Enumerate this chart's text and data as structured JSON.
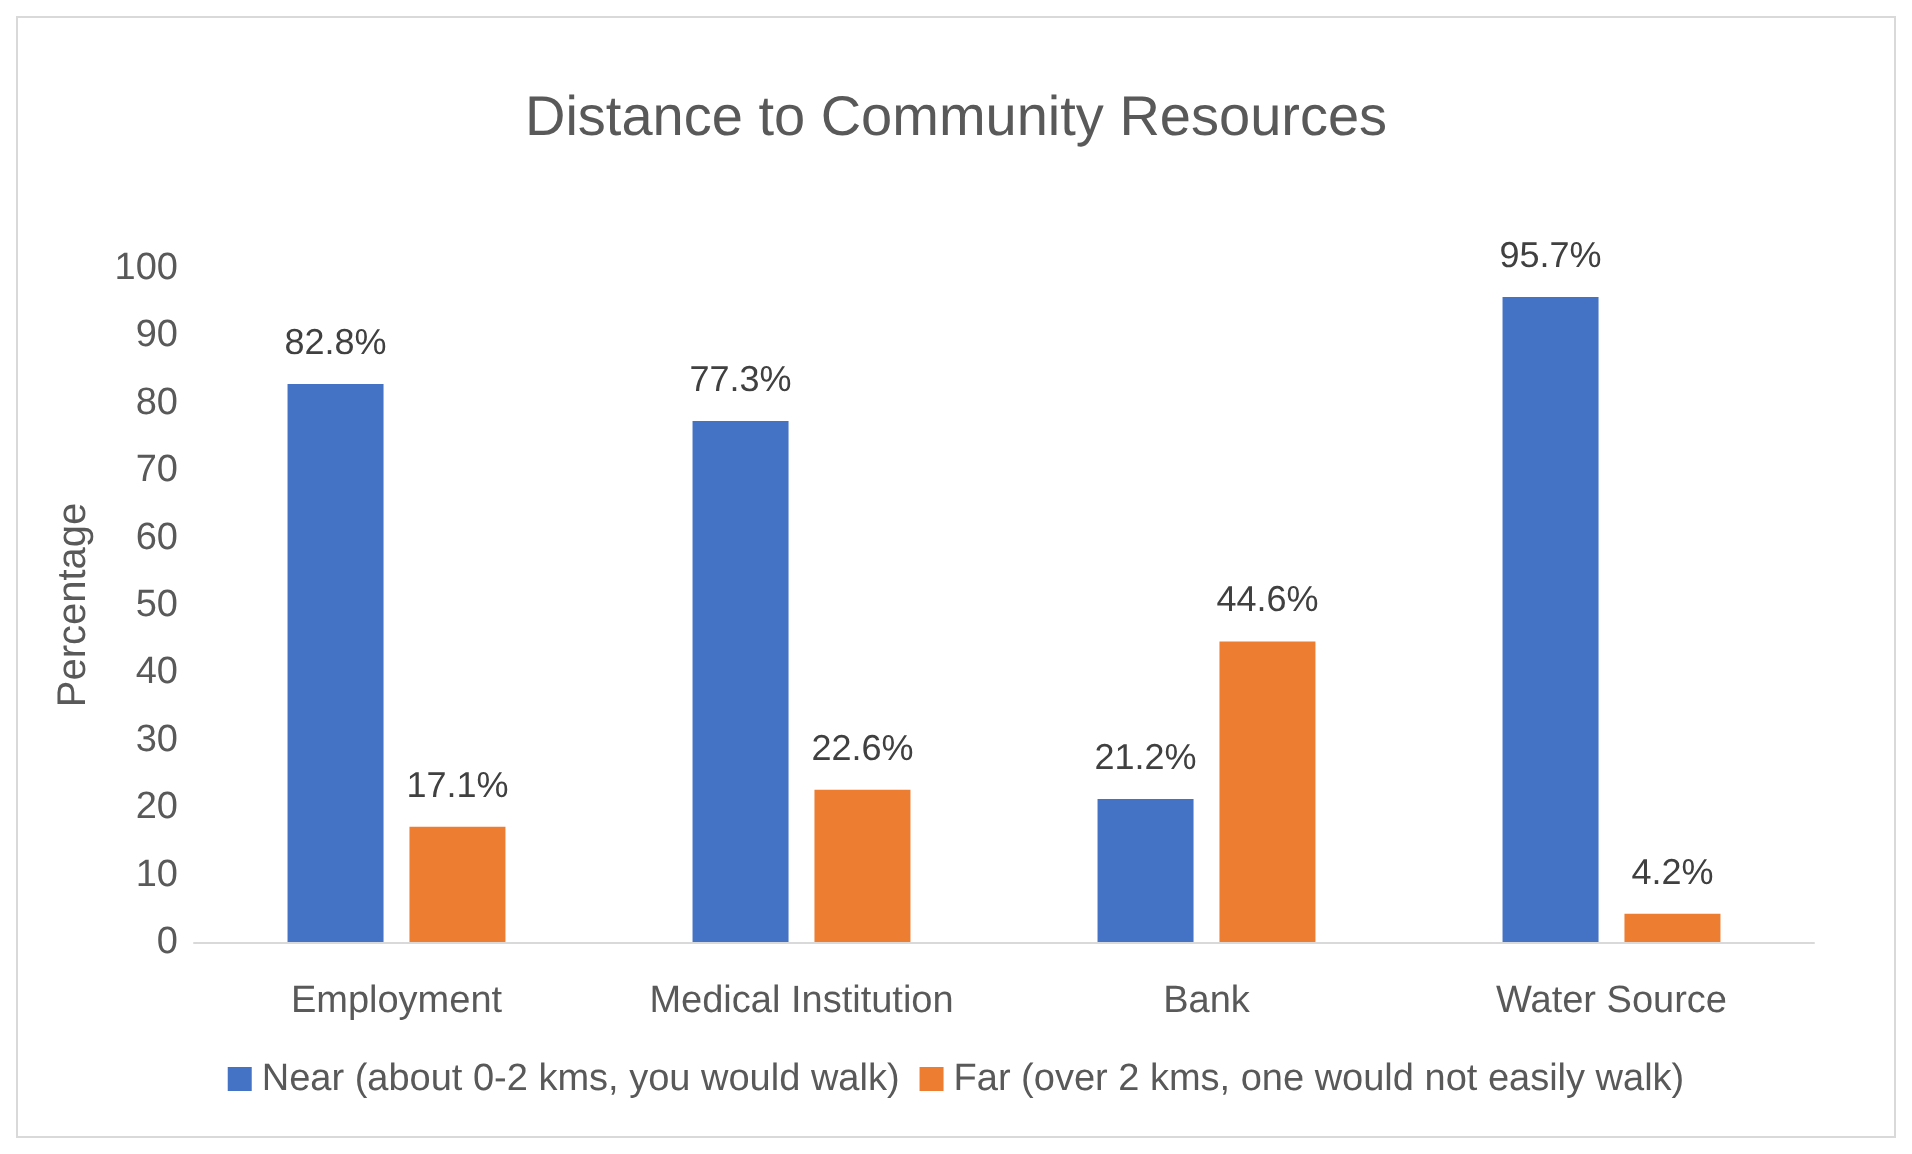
{
  "chart_data": {
    "type": "bar",
    "title": "Distance to Community Resources",
    "ylabel": "Percentage",
    "categories": [
      "Employment",
      "Medical Institution",
      "Bank",
      "Water Source"
    ],
    "series": [
      {
        "name": "Near (about 0-2 kms, you would walk)",
        "color": "#4472c4",
        "values": [
          82.8,
          77.3,
          21.2,
          95.7
        ],
        "value_labels": [
          "82.8%",
          "77.3%",
          "21.2%",
          "95.7%"
        ]
      },
      {
        "name": "Far (over 2 kms, one would not easily walk)",
        "color": "#ed7d31",
        "values": [
          17.1,
          22.6,
          44.6,
          4.2
        ],
        "value_labels": [
          "17.1%",
          "22.6%",
          "44.6%",
          "4.2%"
        ]
      }
    ],
    "ylim": [
      0,
      100
    ],
    "yticks": [
      0,
      10,
      20,
      30,
      40,
      50,
      60,
      70,
      80,
      90,
      100
    ],
    "grid": false,
    "legend": "bottom"
  }
}
